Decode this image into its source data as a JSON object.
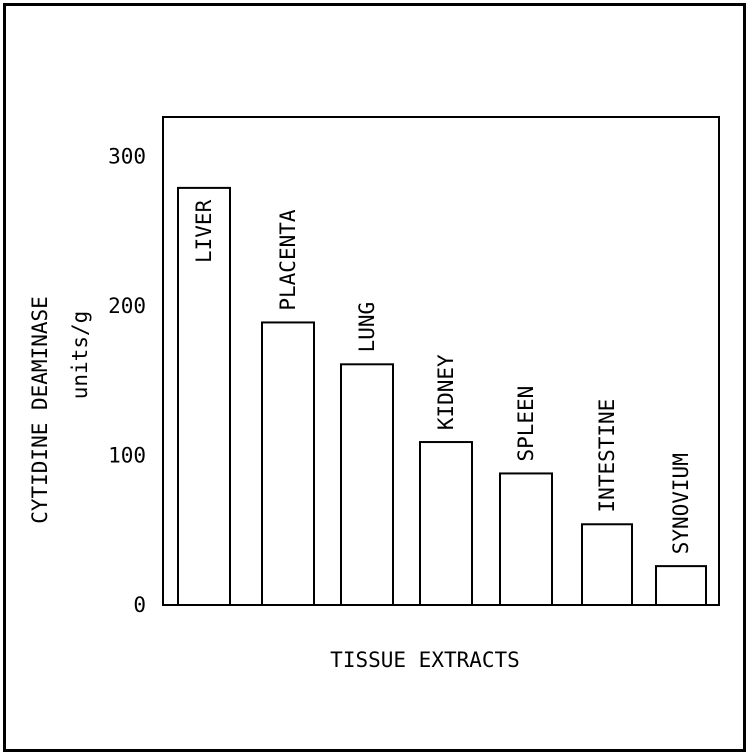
{
  "chart_data": {
    "type": "bar",
    "xlabel": "TISSUE EXTRACTS",
    "ylabel_line1": "CYTIDINE DEAMINASE",
    "ylabel_line2": "units/g",
    "categories": [
      "LIVER",
      "PLACENTA",
      "LUNG",
      "KIDNEY",
      "SPLEEN",
      "INTESTINE",
      "SYNOVIUM"
    ],
    "values": [
      279,
      189,
      161,
      109,
      88,
      54,
      26
    ],
    "ylim": [
      0,
      330
    ],
    "yticks": [
      0,
      100,
      200,
      300
    ],
    "grid": false,
    "legend": "none",
    "label_placement": [
      "inside",
      "above",
      "above",
      "above",
      "above",
      "above",
      "above"
    ]
  }
}
